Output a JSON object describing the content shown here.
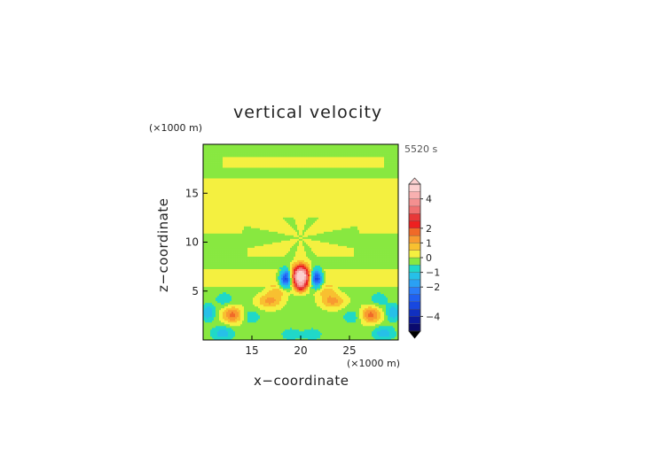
{
  "chart_data": {
    "type": "heatmap",
    "title": "vertical velocity",
    "xlabel": "x−coordinate",
    "ylabel": "z−coordinate",
    "x_unit_label": "(×1000 m)",
    "y_unit_label": "(×1000 m)",
    "time_label": "5520 s",
    "xlim": [
      10,
      30
    ],
    "ylim": [
      0,
      20
    ],
    "x_ticks": [
      15,
      20,
      25
    ],
    "y_ticks": [
      5,
      10,
      15
    ],
    "colorbar": {
      "range": [
        -5,
        5
      ],
      "tick_values": [
        4,
        2,
        1,
        0,
        -1,
        -2,
        -4
      ],
      "tick_labels": [
        "4",
        "2",
        "1",
        "0",
        "−1",
        "−2",
        "−4"
      ],
      "levels": [
        {
          "lo": -5.0,
          "hi": -4.5,
          "color": "#0a0a6e"
        },
        {
          "lo": -4.5,
          "hi": -4.0,
          "color": "#0c1a9a"
        },
        {
          "lo": -4.0,
          "hi": -3.5,
          "color": "#1030c0"
        },
        {
          "lo": -3.5,
          "hi": -3.0,
          "color": "#1848e0"
        },
        {
          "lo": -3.0,
          "hi": -2.5,
          "color": "#2060f0"
        },
        {
          "lo": -2.5,
          "hi": -2.0,
          "color": "#2a7cf8"
        },
        {
          "lo": -2.0,
          "hi": -1.5,
          "color": "#2aa0f4"
        },
        {
          "lo": -1.5,
          "hi": -1.0,
          "color": "#26c0e8"
        },
        {
          "lo": -1.0,
          "hi": -0.5,
          "color": "#20d8c8"
        },
        {
          "lo": -0.5,
          "hi": 0.0,
          "color": "#88e840"
        },
        {
          "lo": 0.0,
          "hi": 0.5,
          "color": "#f4f040"
        },
        {
          "lo": 0.5,
          "hi": 1.0,
          "color": "#f8c030"
        },
        {
          "lo": 1.0,
          "hi": 1.5,
          "color": "#f89a30"
        },
        {
          "lo": 1.5,
          "hi": 2.0,
          "color": "#f06a28"
        },
        {
          "lo": 2.0,
          "hi": 2.5,
          "color": "#ee2020"
        },
        {
          "lo": 2.5,
          "hi": 3.0,
          "color": "#e83838"
        },
        {
          "lo": 3.0,
          "hi": 3.5,
          "color": "#f07070"
        },
        {
          "lo": 3.5,
          "hi": 4.0,
          "color": "#f49090"
        },
        {
          "lo": 4.0,
          "hi": 4.5,
          "color": "#f8b0b0"
        },
        {
          "lo": 4.5,
          "hi": 5.0,
          "color": "#fcd0d0"
        }
      ]
    },
    "features": [
      {
        "x": 20.0,
        "z": 6.6,
        "sx": 0.65,
        "sz": 0.75,
        "amp": 5.6
      },
      {
        "x": 18.5,
        "z": 6.3,
        "sx": 0.45,
        "sz": 0.65,
        "amp": -3.6
      },
      {
        "x": 21.6,
        "z": 6.3,
        "sx": 0.45,
        "sz": 0.65,
        "amp": -3.6
      },
      {
        "x": 20.0,
        "z": 5.4,
        "sx": 0.4,
        "sz": 0.35,
        "amp": 1.8
      },
      {
        "x": 13.0,
        "z": 2.6,
        "sx": 0.7,
        "sz": 0.6,
        "amp": 1.8
      },
      {
        "x": 27.2,
        "z": 2.6,
        "sx": 0.7,
        "sz": 0.6,
        "amp": 1.8
      },
      {
        "x": 16.8,
        "z": 4.0,
        "sx": 0.9,
        "sz": 0.5,
        "amp": 1.4
      },
      {
        "x": 23.3,
        "z": 4.0,
        "sx": 0.9,
        "sz": 0.5,
        "amp": 1.4
      },
      {
        "x": 17.7,
        "z": 5.0,
        "sx": 0.8,
        "sz": 0.4,
        "amp": 1.0
      },
      {
        "x": 22.5,
        "z": 5.0,
        "sx": 0.8,
        "sz": 0.4,
        "amp": 1.0
      },
      {
        "x": 10.5,
        "z": 2.8,
        "sx": 0.5,
        "sz": 0.6,
        "amp": -1.3
      },
      {
        "x": 29.5,
        "z": 2.8,
        "sx": 0.5,
        "sz": 0.6,
        "amp": -1.3
      },
      {
        "x": 12.0,
        "z": 0.7,
        "sx": 0.8,
        "sz": 0.5,
        "amp": -1.1
      },
      {
        "x": 28.5,
        "z": 0.7,
        "sx": 0.8,
        "sz": 0.5,
        "amp": -1.1
      },
      {
        "x": 15.0,
        "z": 2.4,
        "sx": 0.6,
        "sz": 0.5,
        "amp": -0.8
      },
      {
        "x": 25.2,
        "z": 2.4,
        "sx": 0.6,
        "sz": 0.5,
        "amp": -0.8
      },
      {
        "x": 19.0,
        "z": 0.6,
        "sx": 0.7,
        "sz": 0.45,
        "amp": -0.7
      },
      {
        "x": 21.2,
        "z": 0.6,
        "sx": 0.7,
        "sz": 0.45,
        "amp": -0.7
      },
      {
        "x": 12.2,
        "z": 4.2,
        "sx": 0.6,
        "sz": 0.45,
        "amp": -0.8
      },
      {
        "x": 28.0,
        "z": 4.2,
        "sx": 0.6,
        "sz": 0.45,
        "amp": -0.8
      }
    ]
  }
}
